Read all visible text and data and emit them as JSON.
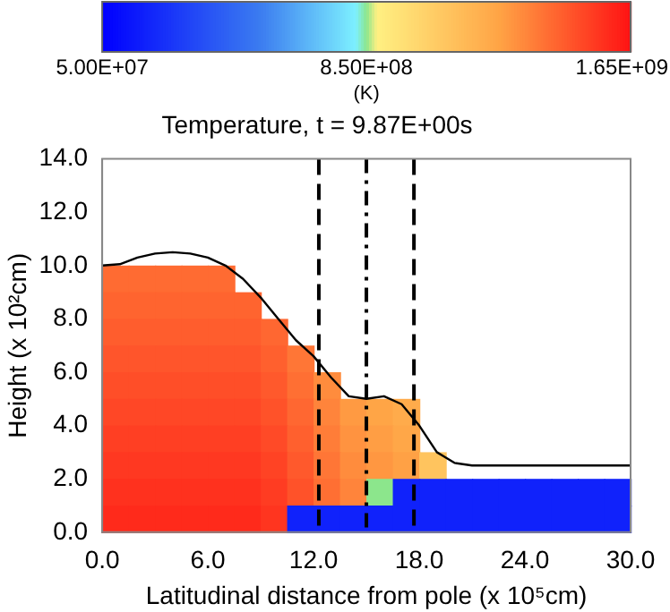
{
  "chart_data": {
    "type": "heatmap",
    "title": "Temperature, t = 9.87E+00s",
    "xlabel": "Latitudinal distance from pole (x 10⁵cm)",
    "ylabel": "Height (x 10²cm)",
    "clabel": "(K)",
    "x": [
      0.75,
      2.25,
      3.75,
      5.25,
      6.75,
      8.25,
      9.75,
      11.25,
      12.75,
      14.25,
      15.75,
      17.25,
      18.75,
      20.25,
      21.75,
      23.25,
      24.75,
      26.25,
      27.75,
      29.25
    ],
    "y": [
      9.5,
      8.5,
      7.5,
      6.5,
      5.5,
      4.5,
      3.5,
      2.5,
      1.5,
      0.5
    ],
    "cells": [
      [
        1410000000.0,
        1410000000.0,
        1410000000.0,
        1410000000.0,
        1410000000.0,
        null,
        null,
        null,
        null,
        null,
        null,
        null,
        null,
        null,
        null,
        null,
        null,
        null,
        null,
        null
      ],
      [
        1430000000.0,
        1430000000.0,
        1430000000.0,
        1430000000.0,
        1430000000.0,
        1430000000.0,
        null,
        null,
        null,
        null,
        null,
        null,
        null,
        null,
        null,
        null,
        null,
        null,
        null,
        null
      ],
      [
        1450000000.0,
        1450000000.0,
        1450000000.0,
        1450000000.0,
        1450000000.0,
        1450000000.0,
        1420000000.0,
        null,
        null,
        null,
        null,
        null,
        null,
        null,
        null,
        null,
        null,
        null,
        null,
        null
      ],
      [
        1470000000.0,
        1470000000.0,
        1470000000.0,
        1470000000.0,
        1470000000.0,
        1470000000.0,
        1440000000.0,
        1380000000.0,
        null,
        null,
        null,
        null,
        null,
        null,
        null,
        null,
        null,
        null,
        null,
        null
      ],
      [
        1490000000.0,
        1490000000.0,
        1490000000.0,
        1490000000.0,
        1490000000.0,
        1490000000.0,
        1460000000.0,
        1400000000.0,
        1320000000.0,
        null,
        null,
        null,
        null,
        null,
        null,
        null,
        null,
        null,
        null,
        null
      ],
      [
        1510000000.0,
        1510000000.0,
        1510000000.0,
        1510000000.0,
        1510000000.0,
        1510000000.0,
        1480000000.0,
        1420000000.0,
        1340000000.0,
        1280000000.0,
        1250000000.0,
        1220000000.0,
        null,
        null,
        null,
        null,
        null,
        null,
        null,
        null
      ],
      [
        1530000000.0,
        1530000000.0,
        1530000000.0,
        1530000000.0,
        1530000000.0,
        1530000000.0,
        1500000000.0,
        1440000000.0,
        1360000000.0,
        1300000000.0,
        1270000000.0,
        1240000000.0,
        null,
        null,
        null,
        null,
        null,
        null,
        null,
        null
      ],
      [
        1550000000.0,
        1550000000.0,
        1550000000.0,
        1550000000.0,
        1550000000.0,
        1550000000.0,
        1520000000.0,
        1460000000.0,
        1380000000.0,
        1320000000.0,
        1290000000.0,
        1260000000.0,
        1100000000.0,
        null,
        null,
        null,
        null,
        null,
        null,
        null
      ],
      [
        1570000000.0,
        1570000000.0,
        1570000000.0,
        1570000000.0,
        1570000000.0,
        1570000000.0,
        1540000000.0,
        1480000000.0,
        1400000000.0,
        1340000000.0,
        850000000.0,
        180000000.0,
        180000000.0,
        180000000.0,
        180000000.0,
        180000000.0,
        180000000.0,
        180000000.0,
        180000000.0,
        180000000.0
      ],
      [
        1590000000.0,
        1590000000.0,
        1590000000.0,
        1590000000.0,
        1590000000.0,
        1590000000.0,
        1560000000.0,
        180000000.0,
        180000000.0,
        180000000.0,
        180000000.0,
        180000000.0,
        180000000.0,
        180000000.0,
        180000000.0,
        180000000.0,
        180000000.0,
        180000000.0,
        180000000.0,
        180000000.0
      ]
    ],
    "clim": [
      50000000.0,
      1650000000.0
    ],
    "cticks": [
      {
        "value": 50000000.0,
        "label": "5.00E+07"
      },
      {
        "value": 850000000.0,
        "label": "8.50E+08"
      },
      {
        "value": 1650000000.0,
        "label": "1.65E+09"
      }
    ],
    "series": [
      {
        "type": "line",
        "color": "#000000",
        "x": [
          0,
          1,
          2,
          3,
          4,
          5,
          6,
          7,
          8,
          9,
          10,
          11,
          12,
          13,
          14,
          15,
          16,
          17,
          18,
          19,
          20,
          21,
          30
        ],
        "values": [
          10.0,
          10.05,
          10.3,
          10.45,
          10.5,
          10.45,
          10.3,
          10.0,
          9.5,
          8.8,
          8.0,
          7.2,
          6.6,
          5.8,
          5.1,
          5.0,
          5.1,
          4.8,
          4.0,
          3.0,
          2.6,
          2.5,
          2.5
        ]
      }
    ],
    "ref_lines": [
      {
        "axis": "x",
        "value": 12.3,
        "line_style": "dashed",
        "color": "#000000"
      },
      {
        "axis": "x",
        "value": 15.0,
        "line_style": "dashdot",
        "color": "#000000"
      },
      {
        "axis": "x",
        "value": 17.7,
        "line_style": "dashed",
        "color": "#000000"
      }
    ],
    "xlim": [
      0,
      30
    ],
    "ylim": [
      0,
      14
    ],
    "xticks": [
      {
        "value": 0,
        "label": "0.0"
      },
      {
        "value": 6,
        "label": "6.0"
      },
      {
        "value": 12,
        "label": "12.0"
      },
      {
        "value": 18,
        "label": "18.0"
      },
      {
        "value": 24,
        "label": "24.0"
      },
      {
        "value": 30,
        "label": "30.0"
      }
    ],
    "yticks": [
      {
        "value": 0,
        "label": "0.0"
      },
      {
        "value": 2,
        "label": "2.0"
      },
      {
        "value": 4,
        "label": "4.0"
      },
      {
        "value": 6,
        "label": "6.0"
      },
      {
        "value": 8,
        "label": "8.0"
      },
      {
        "value": 10,
        "label": "10.0"
      },
      {
        "value": 12,
        "label": "12.0"
      },
      {
        "value": 14,
        "label": "14.0"
      }
    ],
    "grid": false,
    "legend": false
  }
}
